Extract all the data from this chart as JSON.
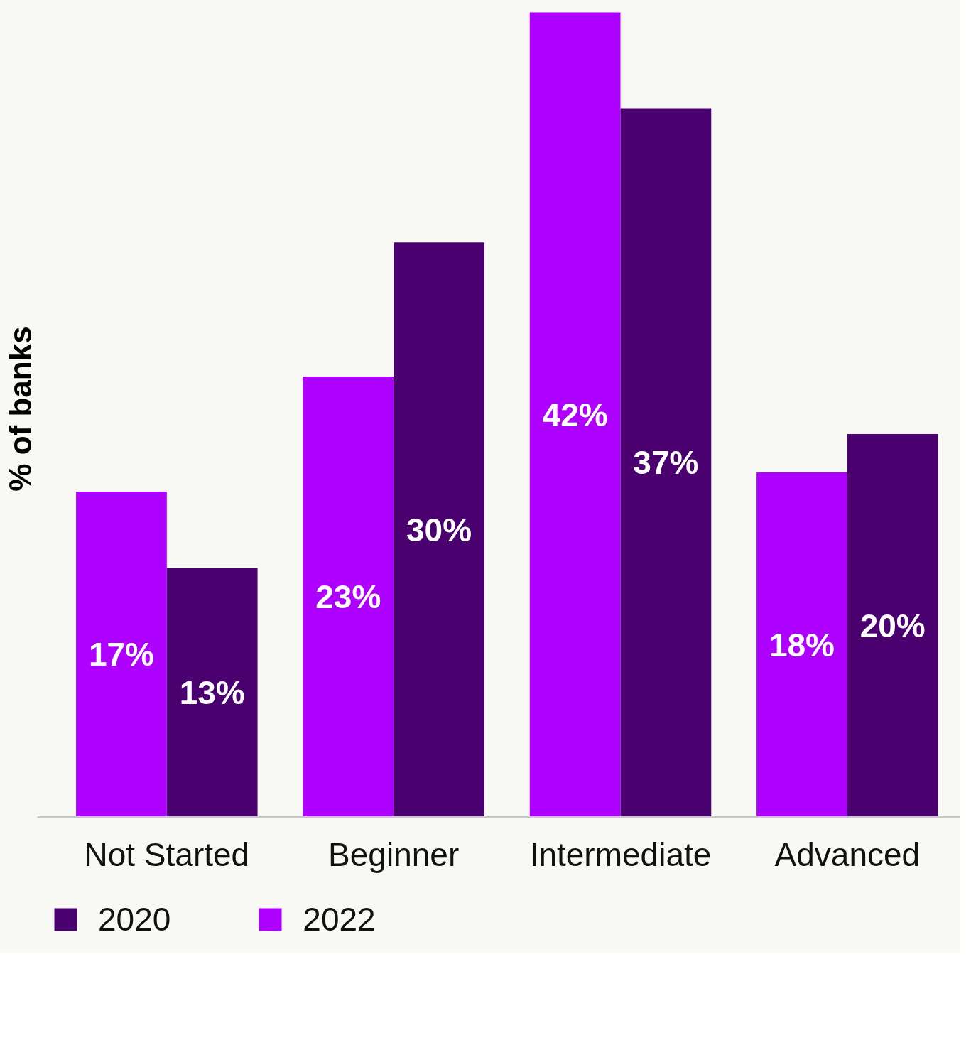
{
  "chart_data": {
    "type": "bar",
    "ylabel": "% of banks",
    "categories": [
      "Not Started",
      "Beginner",
      "Intermediate",
      "Advanced"
    ],
    "series": [
      {
        "name": "2022",
        "color": "#ad00fe",
        "values": [
          17,
          23,
          42,
          18
        ],
        "value_labels": [
          "17%",
          "23%",
          "42%",
          "18%"
        ]
      },
      {
        "name": "2020",
        "color": "#4b0070",
        "values": [
          13,
          30,
          37,
          20
        ],
        "value_labels": [
          "13%",
          "30%",
          "37%",
          "20%"
        ]
      }
    ],
    "legend": "bottom left",
    "grid": false
  }
}
